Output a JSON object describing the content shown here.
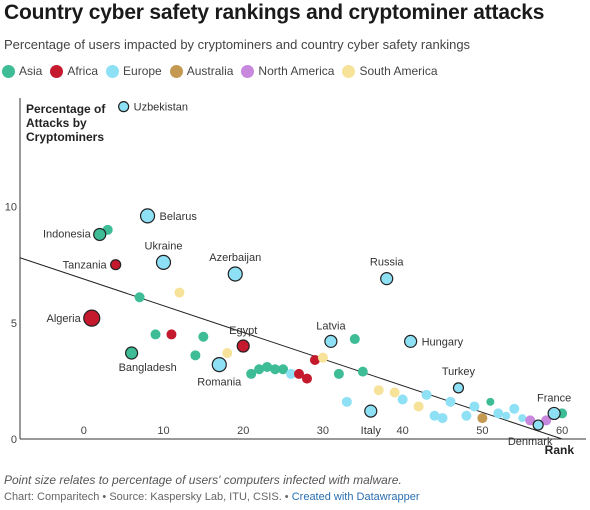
{
  "title": "Country cyber safety rankings and cryptominer attacks",
  "subtitle": "Percentage of users impacted by cryptominers and country cyber safety rankings",
  "footnote": "Point size relates to percentage of users' computers infected with malware.",
  "credits": {
    "chart_by": "Chart: Comparitech",
    "sep1": " • ",
    "source": "Source: Kaspersky Lab, ITU, CSIS.",
    "sep2": " • ",
    "created_with": "Created with Datawrapper"
  },
  "colors": {
    "Asia": "#3dbc95",
    "Africa": "#c5192d",
    "Europe": "#8ee0f5",
    "Australia": "#c49a52",
    "North America": "#c888dd",
    "South America": "#f7e29a",
    "trend": "#222222",
    "axis": "#333333"
  },
  "chart_data": {
    "type": "scatter",
    "title": "Country cyber safety rankings and cryptominer attacks",
    "xlabel": "Rank",
    "ylabel": "Percentage of Attacks by Cryptominers",
    "xlim": [
      -8,
      63
    ],
    "ylim": [
      0,
      14.5
    ],
    "xticks": [
      0,
      10,
      20,
      30,
      40,
      50,
      60
    ],
    "yticks": [
      0,
      5,
      10
    ],
    "grid": false,
    "legend_position": "top-left",
    "legend": [
      "Asia",
      "Africa",
      "Europe",
      "Australia",
      "North America",
      "South America"
    ],
    "trendline": {
      "x1": -8,
      "y1": 7.8,
      "x2": 60,
      "y2": 0
    },
    "points": [
      {
        "label": "Uzbekistan",
        "region": "Europe",
        "x": 5,
        "y": 14.3,
        "size": 5,
        "outlined": true
      },
      {
        "label": "Belarus",
        "region": "Europe",
        "x": 8,
        "y": 9.6,
        "size": 7,
        "outlined": true
      },
      {
        "label": "Indonesia",
        "region": "Asia",
        "x": 2,
        "y": 8.8,
        "size": 6,
        "outlined": true
      },
      {
        "label": "",
        "region": "Asia",
        "x": 3,
        "y": 9.0,
        "size": 5,
        "outlined": false
      },
      {
        "label": "Ukraine",
        "region": "Europe",
        "x": 10,
        "y": 7.6,
        "size": 7,
        "outlined": true
      },
      {
        "label": "Tanzania",
        "region": "Africa",
        "x": 4,
        "y": 7.5,
        "size": 5,
        "outlined": true
      },
      {
        "label": "Azerbaijan",
        "region": "Europe",
        "x": 19,
        "y": 7.1,
        "size": 7,
        "outlined": true
      },
      {
        "label": "Russia",
        "region": "Europe",
        "x": 38,
        "y": 6.9,
        "size": 6,
        "outlined": true
      },
      {
        "label": "",
        "region": "Asia",
        "x": 7,
        "y": 6.1,
        "size": 5,
        "outlined": false
      },
      {
        "label": "",
        "region": "South America",
        "x": 12,
        "y": 6.3,
        "size": 5,
        "outlined": false
      },
      {
        "label": "Algeria",
        "region": "Africa",
        "x": 1,
        "y": 5.2,
        "size": 8,
        "outlined": true
      },
      {
        "label": "",
        "region": "Asia",
        "x": 9,
        "y": 4.5,
        "size": 5,
        "outlined": false
      },
      {
        "label": "",
        "region": "Africa",
        "x": 11,
        "y": 4.5,
        "size": 5,
        "outlined": false
      },
      {
        "label": "",
        "region": "Asia",
        "x": 15,
        "y": 4.4,
        "size": 5,
        "outlined": false
      },
      {
        "label": "Egypt",
        "region": "Africa",
        "x": 20,
        "y": 4.0,
        "size": 6,
        "outlined": true
      },
      {
        "label": "Bangladesh",
        "region": "Asia",
        "x": 6,
        "y": 3.7,
        "size": 6,
        "outlined": true
      },
      {
        "label": "",
        "region": "Asia",
        "x": 14,
        "y": 3.6,
        "size": 5,
        "outlined": false
      },
      {
        "label": "",
        "region": "South America",
        "x": 18,
        "y": 3.7,
        "size": 5,
        "outlined": false
      },
      {
        "label": "Romania",
        "region": "Europe",
        "x": 17,
        "y": 3.2,
        "size": 7,
        "outlined": true
      },
      {
        "label": "Latvia",
        "region": "Europe",
        "x": 31,
        "y": 4.2,
        "size": 6,
        "outlined": true
      },
      {
        "label": "",
        "region": "Asia",
        "x": 34,
        "y": 4.3,
        "size": 5,
        "outlined": false
      },
      {
        "label": "Hungary",
        "region": "Europe",
        "x": 41,
        "y": 4.2,
        "size": 6,
        "outlined": true
      },
      {
        "label": "",
        "region": "Asia",
        "x": 21,
        "y": 2.8,
        "size": 5,
        "outlined": false
      },
      {
        "label": "",
        "region": "Asia",
        "x": 22,
        "y": 3.0,
        "size": 5,
        "outlined": false
      },
      {
        "label": "",
        "region": "Asia",
        "x": 23,
        "y": 3.1,
        "size": 5,
        "outlined": false
      },
      {
        "label": "",
        "region": "Asia",
        "x": 24,
        "y": 3.0,
        "size": 5,
        "outlined": false
      },
      {
        "label": "",
        "region": "Asia",
        "x": 25,
        "y": 3.0,
        "size": 5,
        "outlined": false
      },
      {
        "label": "",
        "region": "Europe",
        "x": 26,
        "y": 2.8,
        "size": 5,
        "outlined": false
      },
      {
        "label": "",
        "region": "Africa",
        "x": 27,
        "y": 2.8,
        "size": 5,
        "outlined": false
      },
      {
        "label": "",
        "region": "Africa",
        "x": 28,
        "y": 2.6,
        "size": 5,
        "outlined": false
      },
      {
        "label": "",
        "region": "Africa",
        "x": 29,
        "y": 3.4,
        "size": 5,
        "outlined": false
      },
      {
        "label": "",
        "region": "South America",
        "x": 30,
        "y": 3.5,
        "size": 5,
        "outlined": false
      },
      {
        "label": "",
        "region": "Asia",
        "x": 32,
        "y": 2.8,
        "size": 5,
        "outlined": false
      },
      {
        "label": "",
        "region": "Asia",
        "x": 35,
        "y": 2.9,
        "size": 5,
        "outlined": false
      },
      {
        "label": "",
        "region": "Europe",
        "x": 33,
        "y": 1.6,
        "size": 5,
        "outlined": false
      },
      {
        "label": "Italy",
        "region": "Europe",
        "x": 36,
        "y": 1.2,
        "size": 6,
        "outlined": true
      },
      {
        "label": "",
        "region": "South America",
        "x": 37,
        "y": 2.1,
        "size": 5,
        "outlined": false
      },
      {
        "label": "",
        "region": "South America",
        "x": 39,
        "y": 2.0,
        "size": 5,
        "outlined": false
      },
      {
        "label": "",
        "region": "Europe",
        "x": 40,
        "y": 1.7,
        "size": 5,
        "outlined": false
      },
      {
        "label": "",
        "region": "South America",
        "x": 42,
        "y": 1.4,
        "size": 5,
        "outlined": false
      },
      {
        "label": "",
        "region": "Europe",
        "x": 43,
        "y": 1.9,
        "size": 5,
        "outlined": false
      },
      {
        "label": "",
        "region": "Europe",
        "x": 44,
        "y": 1.0,
        "size": 5,
        "outlined": false
      },
      {
        "label": "",
        "region": "Europe",
        "x": 45,
        "y": 0.9,
        "size": 5,
        "outlined": false
      },
      {
        "label": "",
        "region": "Europe",
        "x": 46,
        "y": 1.6,
        "size": 5,
        "outlined": false
      },
      {
        "label": "Turkey",
        "region": "Europe",
        "x": 47,
        "y": 2.2,
        "size": 5,
        "outlined": true
      },
      {
        "label": "",
        "region": "Europe",
        "x": 48,
        "y": 1.0,
        "size": 5,
        "outlined": false
      },
      {
        "label": "",
        "region": "Europe",
        "x": 49,
        "y": 1.4,
        "size": 5,
        "outlined": false
      },
      {
        "label": "",
        "region": "Australia",
        "x": 50,
        "y": 0.9,
        "size": 5,
        "outlined": false
      },
      {
        "label": "",
        "region": "Asia",
        "x": 51,
        "y": 1.6,
        "size": 4,
        "outlined": false
      },
      {
        "label": "",
        "region": "Europe",
        "x": 52,
        "y": 1.1,
        "size": 5,
        "outlined": false
      },
      {
        "label": "",
        "region": "Europe",
        "x": 53,
        "y": 1.0,
        "size": 4,
        "outlined": false
      },
      {
        "label": "",
        "region": "Europe",
        "x": 54,
        "y": 1.3,
        "size": 5,
        "outlined": false
      },
      {
        "label": "",
        "region": "Europe",
        "x": 55,
        "y": 0.9,
        "size": 4,
        "outlined": false
      },
      {
        "label": "",
        "region": "North America",
        "x": 56,
        "y": 0.8,
        "size": 5,
        "outlined": false
      },
      {
        "label": "Denmark",
        "region": "Europe",
        "x": 57,
        "y": 0.6,
        "size": 5,
        "outlined": true
      },
      {
        "label": "",
        "region": "North America",
        "x": 58,
        "y": 0.8,
        "size": 5,
        "outlined": false
      },
      {
        "label": "France",
        "region": "Europe",
        "x": 59,
        "y": 1.1,
        "size": 6,
        "outlined": true
      },
      {
        "label": "",
        "region": "Asia",
        "x": 60,
        "y": 1.1,
        "size": 5,
        "outlined": false
      }
    ]
  }
}
